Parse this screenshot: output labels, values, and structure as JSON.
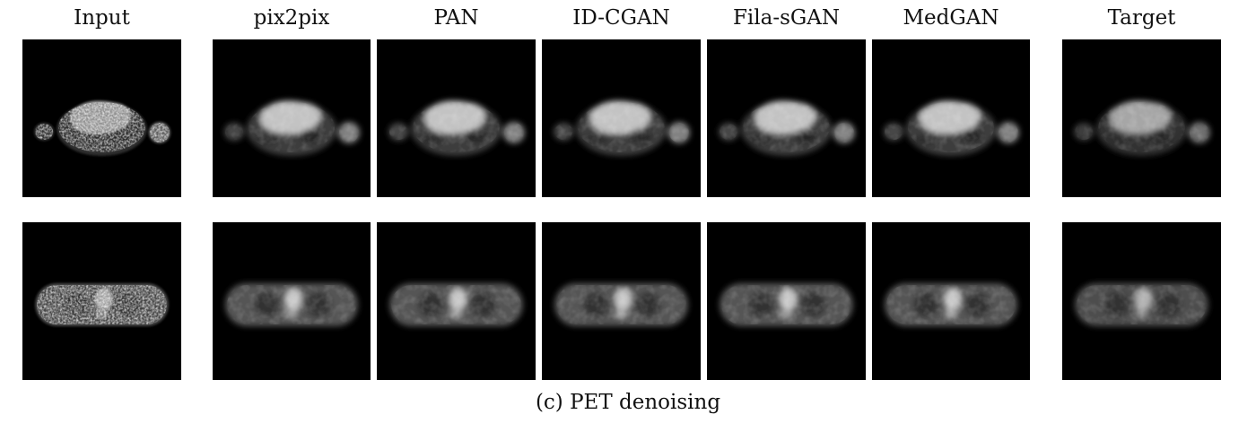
{
  "figure": {
    "columns": [
      {
        "key": "input",
        "label": "Input",
        "group": "input"
      },
      {
        "key": "pix2pix",
        "label": "pix2pix",
        "group": "method"
      },
      {
        "key": "pan",
        "label": "PAN",
        "group": "method"
      },
      {
        "key": "idcgan",
        "label": "ID-CGAN",
        "group": "method"
      },
      {
        "key": "filasgan",
        "label": "Fila-sGAN",
        "group": "method"
      },
      {
        "key": "medgan",
        "label": "MedGAN",
        "group": "method"
      },
      {
        "key": "target",
        "label": "Target",
        "group": "target"
      }
    ],
    "rows": [
      {
        "key": "torso-slice",
        "anatomy": "torso"
      },
      {
        "key": "body-slice",
        "anatomy": "oval"
      }
    ],
    "caption": "(c) PET denoising"
  }
}
